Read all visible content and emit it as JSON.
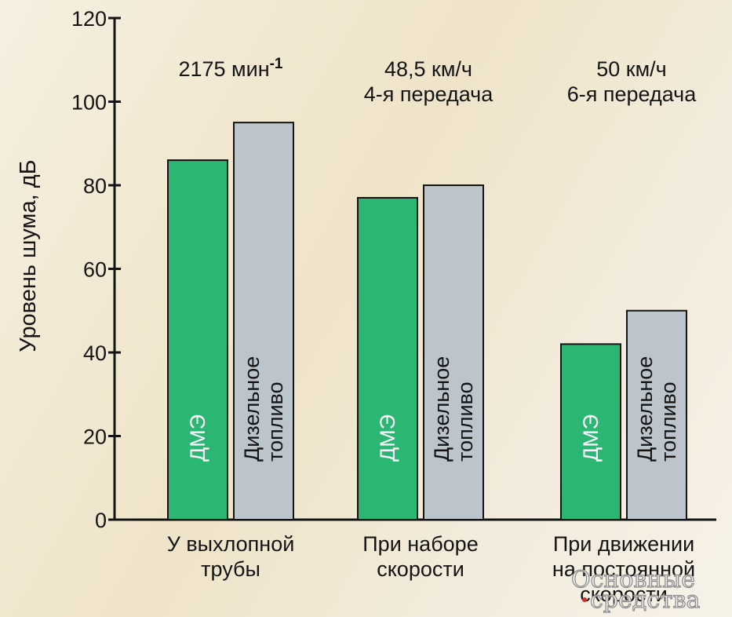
{
  "chart_data": {
    "type": "bar",
    "ylabel": "Уровень шума, дБ",
    "ylim": [
      0,
      120
    ],
    "yticks": [
      0,
      20,
      40,
      60,
      80,
      100,
      120
    ],
    "categories": [
      [
        "У выхлопной",
        "трубы"
      ],
      [
        "При наборе",
        "скорости"
      ],
      [
        "При движении",
        "на постоянной",
        "скорости"
      ]
    ],
    "conditions": [
      [
        "2175 мин",
        "-1"
      ],
      [
        "48,5 км/ч",
        "4-я передача"
      ],
      [
        "50 км/ч",
        "6-я передача"
      ]
    ],
    "series": [
      {
        "name": "ДМЭ",
        "values": [
          86,
          77,
          42
        ],
        "color": "#2bb673"
      },
      {
        "name": [
          "Дизельное",
          "топливо"
        ],
        "values": [
          95,
          80,
          50
        ],
        "color": "#bcc5cb"
      }
    ]
  },
  "watermark": [
    "Основные",
    "средства"
  ]
}
